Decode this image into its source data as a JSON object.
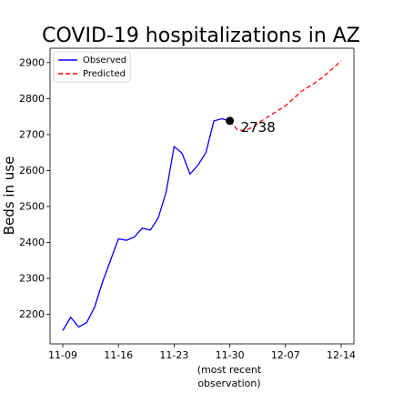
{
  "chart_data": {
    "type": "line",
    "title": "COVID-19 hospitalizations in AZ",
    "xlabel_lines": [
      "(most recent",
      "observation)"
    ],
    "ylabel": "Beds in use",
    "x_origin_label": "11-09",
    "x_ticks": [
      {
        "day": 0,
        "label": "11-09"
      },
      {
        "day": 7,
        "label": "11-16"
      },
      {
        "day": 14,
        "label": "11-23"
      },
      {
        "day": 21,
        "label": "11-30"
      },
      {
        "day": 28,
        "label": "12-07"
      },
      {
        "day": 35,
        "label": "12-14"
      }
    ],
    "y_ticks": [
      2200,
      2300,
      2400,
      2500,
      2600,
      2700,
      2800,
      2900
    ],
    "xlim": [
      -1.6,
      36.6
    ],
    "ylim": [
      2118,
      2940
    ],
    "grid": false,
    "legend_position": "top-left",
    "series": [
      {
        "name": "Observed",
        "color": "#0000ff",
        "dash": "solid",
        "points": [
          [
            0,
            2155
          ],
          [
            1,
            2192
          ],
          [
            2,
            2165
          ],
          [
            3,
            2177
          ],
          [
            4,
            2220
          ],
          [
            5,
            2290
          ],
          [
            6,
            2350
          ],
          [
            7,
            2410
          ],
          [
            8,
            2406
          ],
          [
            9,
            2415
          ],
          [
            10,
            2440
          ],
          [
            11,
            2434
          ],
          [
            12,
            2468
          ],
          [
            13,
            2540
          ],
          [
            14,
            2667
          ],
          [
            15,
            2648
          ],
          [
            16,
            2590
          ],
          [
            17,
            2615
          ],
          [
            18,
            2650
          ],
          [
            19,
            2738
          ],
          [
            20,
            2744
          ],
          [
            21,
            2738
          ]
        ]
      },
      {
        "name": "Predicted",
        "color": "#ff0000",
        "dash": "dashed",
        "points": [
          [
            21,
            2738
          ],
          [
            22,
            2712
          ],
          [
            23,
            2712
          ],
          [
            24,
            2722
          ],
          [
            25,
            2738
          ],
          [
            26,
            2752
          ],
          [
            27,
            2766
          ],
          [
            28,
            2780
          ],
          [
            29,
            2800
          ],
          [
            30,
            2820
          ],
          [
            31,
            2834
          ],
          [
            32,
            2848
          ],
          [
            33,
            2865
          ],
          [
            34,
            2885
          ],
          [
            35,
            2905
          ]
        ]
      }
    ],
    "highlight": {
      "day": 21,
      "value": 2738,
      "label": "2738",
      "color": "#000000"
    }
  }
}
